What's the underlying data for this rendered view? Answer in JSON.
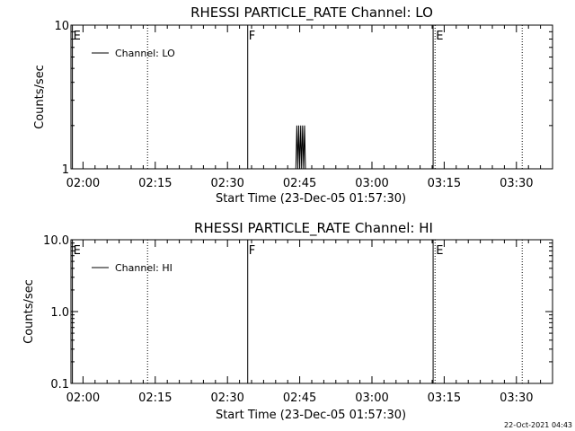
{
  "footer_timestamp": "22-Oct-2021 04:43",
  "chart_data": [
    {
      "type": "line",
      "title": "RHESSI PARTICLE_RATE Channel: LO",
      "xlabel": "Start Time (23-Dec-05 01:57:30)",
      "ylabel": "Counts/sec",
      "x_unit": "minutes after 01:57:30",
      "xlim": [
        0,
        100
      ],
      "xticks": [
        {
          "value": 2.5,
          "label": "02:00"
        },
        {
          "value": 17.5,
          "label": "02:15"
        },
        {
          "value": 32.5,
          "label": "02:30"
        },
        {
          "value": 47.5,
          "label": "02:45"
        },
        {
          "value": 62.5,
          "label": "03:00"
        },
        {
          "value": 77.5,
          "label": "03:15"
        },
        {
          "value": 92.5,
          "label": "03:30"
        }
      ],
      "yscale": "log",
      "ylim": [
        1,
        10
      ],
      "yticks": [
        {
          "value": 1,
          "label": "1"
        },
        {
          "value": 10,
          "label": "10"
        }
      ],
      "legend": {
        "label": "Channel: LO",
        "placement": "top-left"
      },
      "series": [
        {
          "name": "Channel: LO",
          "x": [
            46.7,
            46.9,
            47.1,
            47.3,
            47.5,
            47.7,
            47.9,
            48.1,
            48.3,
            48.5,
            48.7
          ],
          "y": [
            1,
            2,
            1,
            2,
            1,
            2,
            1,
            2,
            1,
            2,
            1
          ]
        }
      ],
      "markers": [
        {
          "x": 0.3,
          "label": "E",
          "style": "solid"
        },
        {
          "x": 15.9,
          "label": "",
          "style": "dotted"
        },
        {
          "x": 36.7,
          "label": "F",
          "style": "solid"
        },
        {
          "x": 75.2,
          "label": "",
          "style": "solid"
        },
        {
          "x": 75.6,
          "label": "E",
          "style": "dotted"
        },
        {
          "x": 93.7,
          "label": "",
          "style": "dotted"
        }
      ]
    },
    {
      "type": "line",
      "title": "RHESSI PARTICLE_RATE Channel: HI",
      "xlabel": "Start Time (23-Dec-05 01:57:30)",
      "ylabel": "Counts/sec",
      "x_unit": "minutes after 01:57:30",
      "xlim": [
        0,
        100
      ],
      "xticks": [
        {
          "value": 2.5,
          "label": "02:00"
        },
        {
          "value": 17.5,
          "label": "02:15"
        },
        {
          "value": 32.5,
          "label": "02:30"
        },
        {
          "value": 47.5,
          "label": "02:45"
        },
        {
          "value": 62.5,
          "label": "03:00"
        },
        {
          "value": 77.5,
          "label": "03:15"
        },
        {
          "value": 92.5,
          "label": "03:30"
        }
      ],
      "yscale": "log",
      "ylim": [
        0.1,
        10
      ],
      "yticks": [
        {
          "value": 0.1,
          "label": "0.1"
        },
        {
          "value": 1.0,
          "label": "1.0"
        },
        {
          "value": 10.0,
          "label": "10.0"
        }
      ],
      "legend": {
        "label": "Channel: HI",
        "placement": "top-left"
      },
      "series": [
        {
          "name": "Channel: HI",
          "x": [],
          "y": []
        }
      ],
      "markers": [
        {
          "x": 0.3,
          "label": "E",
          "style": "solid"
        },
        {
          "x": 15.9,
          "label": "",
          "style": "dotted"
        },
        {
          "x": 36.7,
          "label": "F",
          "style": "solid"
        },
        {
          "x": 75.2,
          "label": "",
          "style": "solid"
        },
        {
          "x": 75.6,
          "label": "E",
          "style": "dotted"
        },
        {
          "x": 93.7,
          "label": "",
          "style": "dotted"
        }
      ]
    }
  ]
}
